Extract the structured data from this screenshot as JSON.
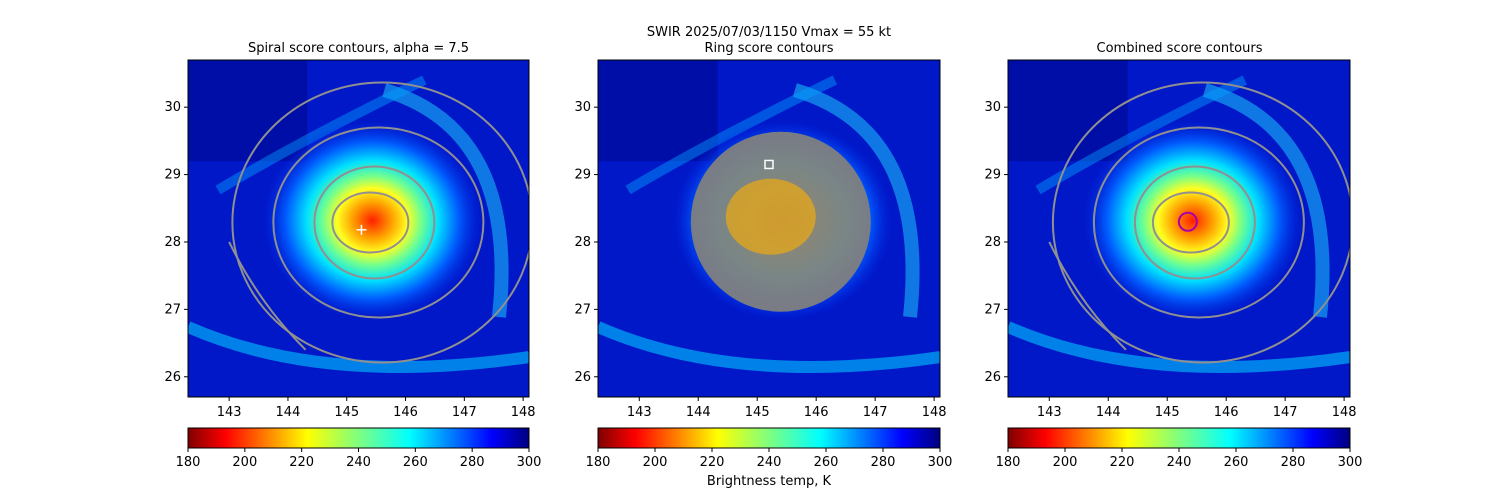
{
  "figure": {
    "suptitle_line1": "SWIR  2025/07/03/1150    Vmax = 55 kt",
    "colorbar_label": "Brightness temp, K",
    "colorbar_ticks": [
      "180",
      "200",
      "220",
      "240",
      "260",
      "280",
      "300"
    ],
    "colormap": "jet_reversed",
    "background_colors": {
      "warm": "#ff0000",
      "cold": "#00008b"
    }
  },
  "chart_data": [
    {
      "type": "heatmap",
      "title": "Spiral score contours, alpha =  7.5",
      "x_ticks": [
        "143",
        "144",
        "145",
        "146",
        "147",
        "148"
      ],
      "y_ticks": [
        "26",
        "27",
        "28",
        "29",
        "30"
      ],
      "xlim": [
        142.3,
        148.1
      ],
      "ylim": [
        25.7,
        30.7
      ],
      "color_range": [
        180,
        300
      ],
      "storm_center": {
        "lon": 145.3,
        "lat": 28.2
      },
      "contour_color": "#909090",
      "marker": {
        "lon": 145.25,
        "lat": 28.18,
        "symbol": "plus",
        "color": "#ffffff"
      }
    },
    {
      "type": "heatmap",
      "title": "Ring score contours",
      "x_ticks": [
        "143",
        "144",
        "145",
        "146",
        "147",
        "148"
      ],
      "y_ticks": [
        "26",
        "27",
        "28",
        "29",
        "30"
      ],
      "xlim": [
        142.3,
        148.1
      ],
      "ylim": [
        25.7,
        30.7
      ],
      "color_range": [
        180,
        300
      ],
      "storm_center": {
        "lon": 145.3,
        "lat": 28.2
      },
      "ring_mask": {
        "lon": 145.4,
        "lat": 28.3,
        "color": "#808080"
      },
      "marker": {
        "lon": 145.2,
        "lat": 29.15,
        "symbol": "square",
        "color": "#ffffff"
      }
    },
    {
      "type": "heatmap",
      "title": "Combined score contours",
      "x_ticks": [
        "143",
        "144",
        "145",
        "146",
        "147",
        "148"
      ],
      "y_ticks": [
        "26",
        "27",
        "28",
        "29",
        "30"
      ],
      "xlim": [
        142.3,
        148.1
      ],
      "ylim": [
        25.7,
        30.7
      ],
      "color_range": [
        180,
        300
      ],
      "storm_center": {
        "lon": 145.3,
        "lat": 28.2
      },
      "contour_color": "#909090",
      "marker": {
        "lon": 145.35,
        "lat": 28.3,
        "symbol": "circle",
        "color": "#aa00aa"
      }
    }
  ]
}
